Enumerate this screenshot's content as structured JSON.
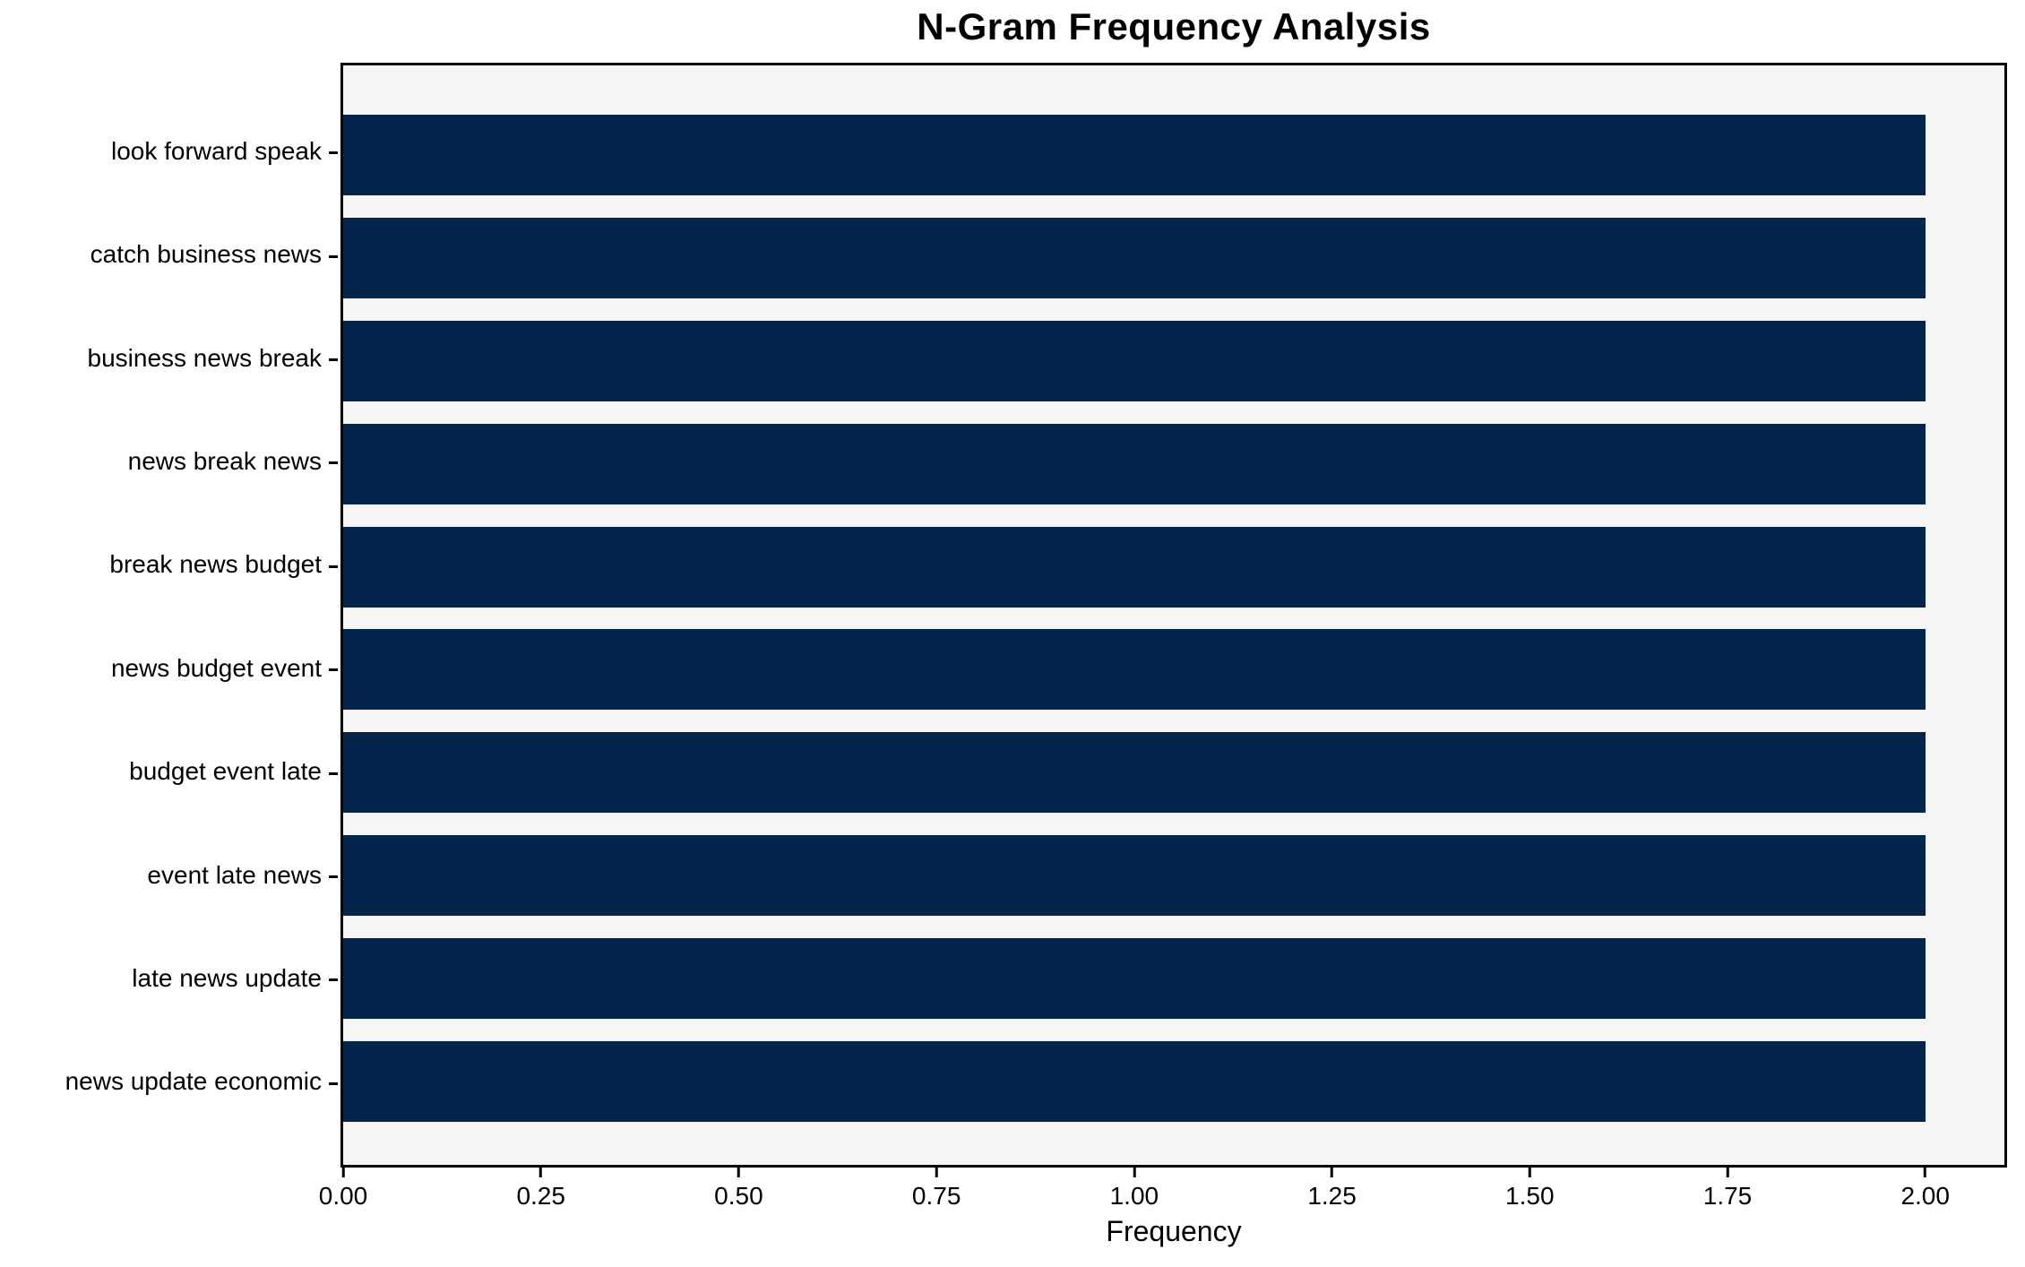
{
  "chart_data": {
    "type": "bar",
    "orientation": "horizontal",
    "title": "N-Gram Frequency Analysis",
    "xlabel": "Frequency",
    "ylabel": "",
    "categories": [
      "look forward speak",
      "catch business news",
      "business news break",
      "news break news",
      "break news budget",
      "news budget event",
      "budget event late",
      "event late news",
      "late news update",
      "news update economic"
    ],
    "values": [
      2,
      2,
      2,
      2,
      2,
      2,
      2,
      2,
      2,
      2
    ],
    "xlim": [
      0,
      2.1
    ],
    "xticks": [
      {
        "label": "0.00",
        "value": 0.0
      },
      {
        "label": "0.25",
        "value": 0.25
      },
      {
        "label": "0.50",
        "value": 0.5
      },
      {
        "label": "0.75",
        "value": 0.75
      },
      {
        "label": "1.00",
        "value": 1.0
      },
      {
        "label": "1.25",
        "value": 1.25
      },
      {
        "label": "1.50",
        "value": 1.5
      },
      {
        "label": "1.75",
        "value": 1.75
      },
      {
        "label": "2.00",
        "value": 2.0
      }
    ],
    "grid": false,
    "legend_position": "none",
    "bar_color": "#03254c",
    "plot_background": "#f5f5f6",
    "figure_background": "#ffffff",
    "spine_color": "#000000"
  }
}
